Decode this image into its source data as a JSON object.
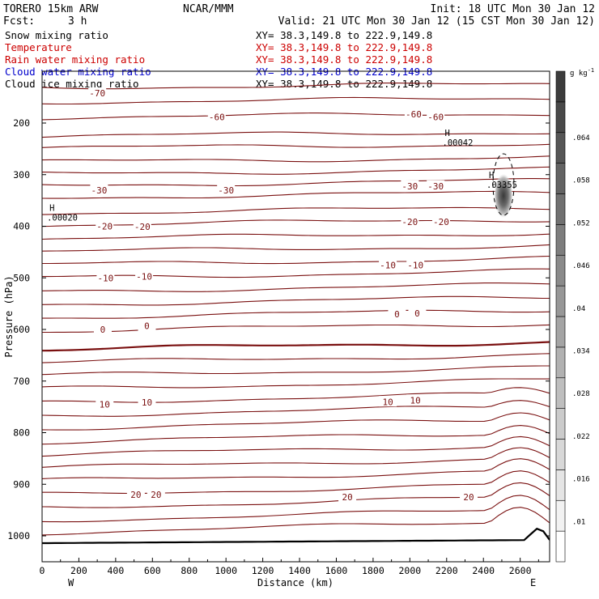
{
  "header": {
    "model": "TORERO  15km ARW",
    "center": "NCAR/MMM",
    "init": "Init: 18 UTC Mon 30 Jan 12",
    "fcst_label": "Fcst:",
    "fcst_value": "3 h",
    "valid": "Valid: 21 UTC Mon 30 Jan 12 (15 CST Mon 30 Jan 12)"
  },
  "fields": [
    {
      "name": "Snow mixing ratio",
      "xy": "XY=  38.3,149.8 to 222.9,149.8",
      "color": "#000000"
    },
    {
      "name": "Temperature",
      "xy": "XY=  38.3,149.8 to 222.9,149.8",
      "color": "#cc0000"
    },
    {
      "name": "Rain water mixing ratio",
      "xy": "XY=  38.3,149.8 to 222.9,149.8",
      "color": "#cc0000"
    },
    {
      "name": "Cloud water mixing ratio",
      "xy": "XY=  38.3,149.8 to 222.9,149.8",
      "color": "#0000cc"
    },
    {
      "name": "Cloud ice mixing ratio",
      "xy": "XY=  38.3,149.8 to 222.9,149.8",
      "color": "#000000"
    }
  ],
  "colors": {
    "temperature_contour": "#7a1010",
    "terrain": "#000000",
    "cloud_ice": "#000000",
    "background": "#ffffff"
  },
  "chart_data": {
    "type": "contour-cross-section",
    "xlabel": "Distance (km)",
    "ylabel": "Pressure (hPa)",
    "xlim": [
      0,
      2760
    ],
    "ylim": [
      1050,
      130
    ],
    "x_ticks": [
      0,
      200,
      400,
      600,
      800,
      1000,
      1200,
      1400,
      1600,
      1800,
      2000,
      2200,
      2400,
      2600
    ],
    "y_ticks": [
      200,
      300,
      400,
      500,
      600,
      700,
      800,
      900,
      1000
    ],
    "x_end_labels": {
      "left": "W",
      "right": "E"
    },
    "colorbar": {
      "unit": "g kg",
      "unit_exp": "-1",
      "ticks": [
        ".01",
        ".016",
        ".022",
        ".028",
        ".034",
        ".04",
        ".046",
        ".052",
        ".058",
        ".064"
      ],
      "levels": 16
    },
    "temperature_labels": [
      {
        "value": "-70",
        "x": 300,
        "p": 142
      },
      {
        "value": "-60",
        "x": 950,
        "p": 188
      },
      {
        "value": "-60",
        "x": 2020,
        "p": 183
      },
      {
        "value": "-60",
        "x": 2140,
        "p": 188
      },
      {
        "value": "-30",
        "x": 310,
        "p": 330
      },
      {
        "value": "-30",
        "x": 1000,
        "p": 330
      },
      {
        "value": "-30",
        "x": 2000,
        "p": 322
      },
      {
        "value": "-30",
        "x": 2140,
        "p": 322
      },
      {
        "value": "-20",
        "x": 340,
        "p": 400
      },
      {
        "value": "-20",
        "x": 545,
        "p": 401
      },
      {
        "value": "-20",
        "x": 2000,
        "p": 391
      },
      {
        "value": "-20",
        "x": 2170,
        "p": 391
      },
      {
        "value": "-10",
        "x": 345,
        "p": 500
      },
      {
        "value": "-10",
        "x": 555,
        "p": 497
      },
      {
        "value": "-10",
        "x": 1880,
        "p": 475
      },
      {
        "value": "-10",
        "x": 2030,
        "p": 475
      },
      {
        "value": "0",
        "x": 330,
        "p": 600
      },
      {
        "value": "0",
        "x": 570,
        "p": 593
      },
      {
        "value": "0",
        "x": 1930,
        "p": 570
      },
      {
        "value": "0",
        "x": 2040,
        "p": 569
      },
      {
        "value": "10",
        "x": 340,
        "p": 745
      },
      {
        "value": "10",
        "x": 570,
        "p": 741
      },
      {
        "value": "10",
        "x": 1880,
        "p": 740
      },
      {
        "value": "10",
        "x": 2030,
        "p": 737
      },
      {
        "value": "20",
        "x": 510,
        "p": 920
      },
      {
        "value": "20",
        "x": 620,
        "p": 920
      },
      {
        "value": "20",
        "x": 1660,
        "p": 925
      },
      {
        "value": "20",
        "x": 2320,
        "p": 925
      }
    ],
    "extrema": [
      {
        "mark": "H",
        "value": ".00020",
        "x": 40,
        "p": 370
      },
      {
        "mark": "H",
        "value": ".00042",
        "x": 2190,
        "p": 225
      },
      {
        "mark": "H",
        "value": ".03355",
        "x": 2430,
        "p": 307
      }
    ],
    "cloud_ice_max": 0.03355
  }
}
